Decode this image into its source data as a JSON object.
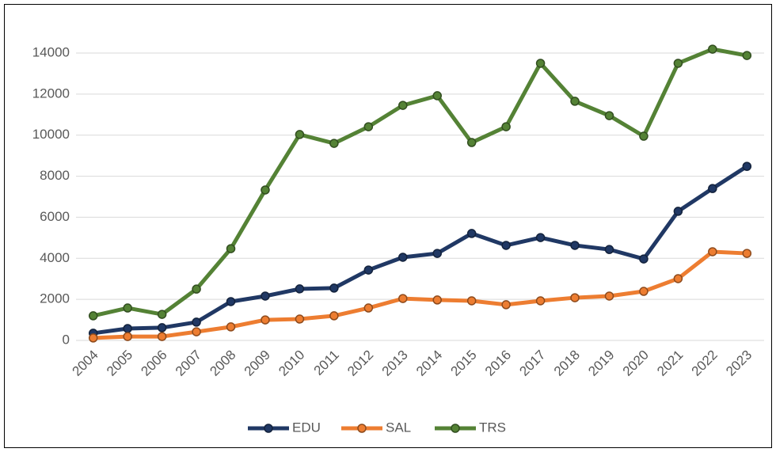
{
  "chart_data": {
    "type": "line",
    "categories": [
      "2004",
      "2005",
      "2006",
      "2007",
      "2008",
      "2009",
      "2010",
      "2011",
      "2012",
      "2013",
      "2014",
      "2015",
      "2016",
      "2017",
      "2018",
      "2019",
      "2020",
      "2021",
      "2022",
      "2023"
    ],
    "series": [
      {
        "name": "EDU",
        "color": "#203864",
        "values": [
          350,
          580,
          620,
          890,
          1890,
          2160,
          2510,
          2550,
          3430,
          4050,
          4240,
          5210,
          4630,
          5010,
          4630,
          4430,
          3970,
          6290,
          7400,
          8480
        ]
      },
      {
        "name": "SAL",
        "color": "#ed7d31",
        "values": [
          120,
          190,
          190,
          420,
          660,
          1000,
          1040,
          1200,
          1580,
          2040,
          1970,
          1930,
          1740,
          1930,
          2080,
          2160,
          2390,
          3010,
          4320,
          4240
        ]
      },
      {
        "name": "TRS",
        "color": "#548235",
        "values": [
          1200,
          1580,
          1270,
          2500,
          4470,
          7330,
          10030,
          9600,
          10410,
          11450,
          11920,
          9640,
          10410,
          13500,
          11650,
          10950,
          9950,
          13500,
          14190,
          13880
        ]
      }
    ],
    "ylim": [
      0,
      14000
    ],
    "yticks": [
      0,
      2000,
      4000,
      6000,
      8000,
      10000,
      12000,
      14000
    ],
    "grid": true,
    "legend": "bottom"
  }
}
